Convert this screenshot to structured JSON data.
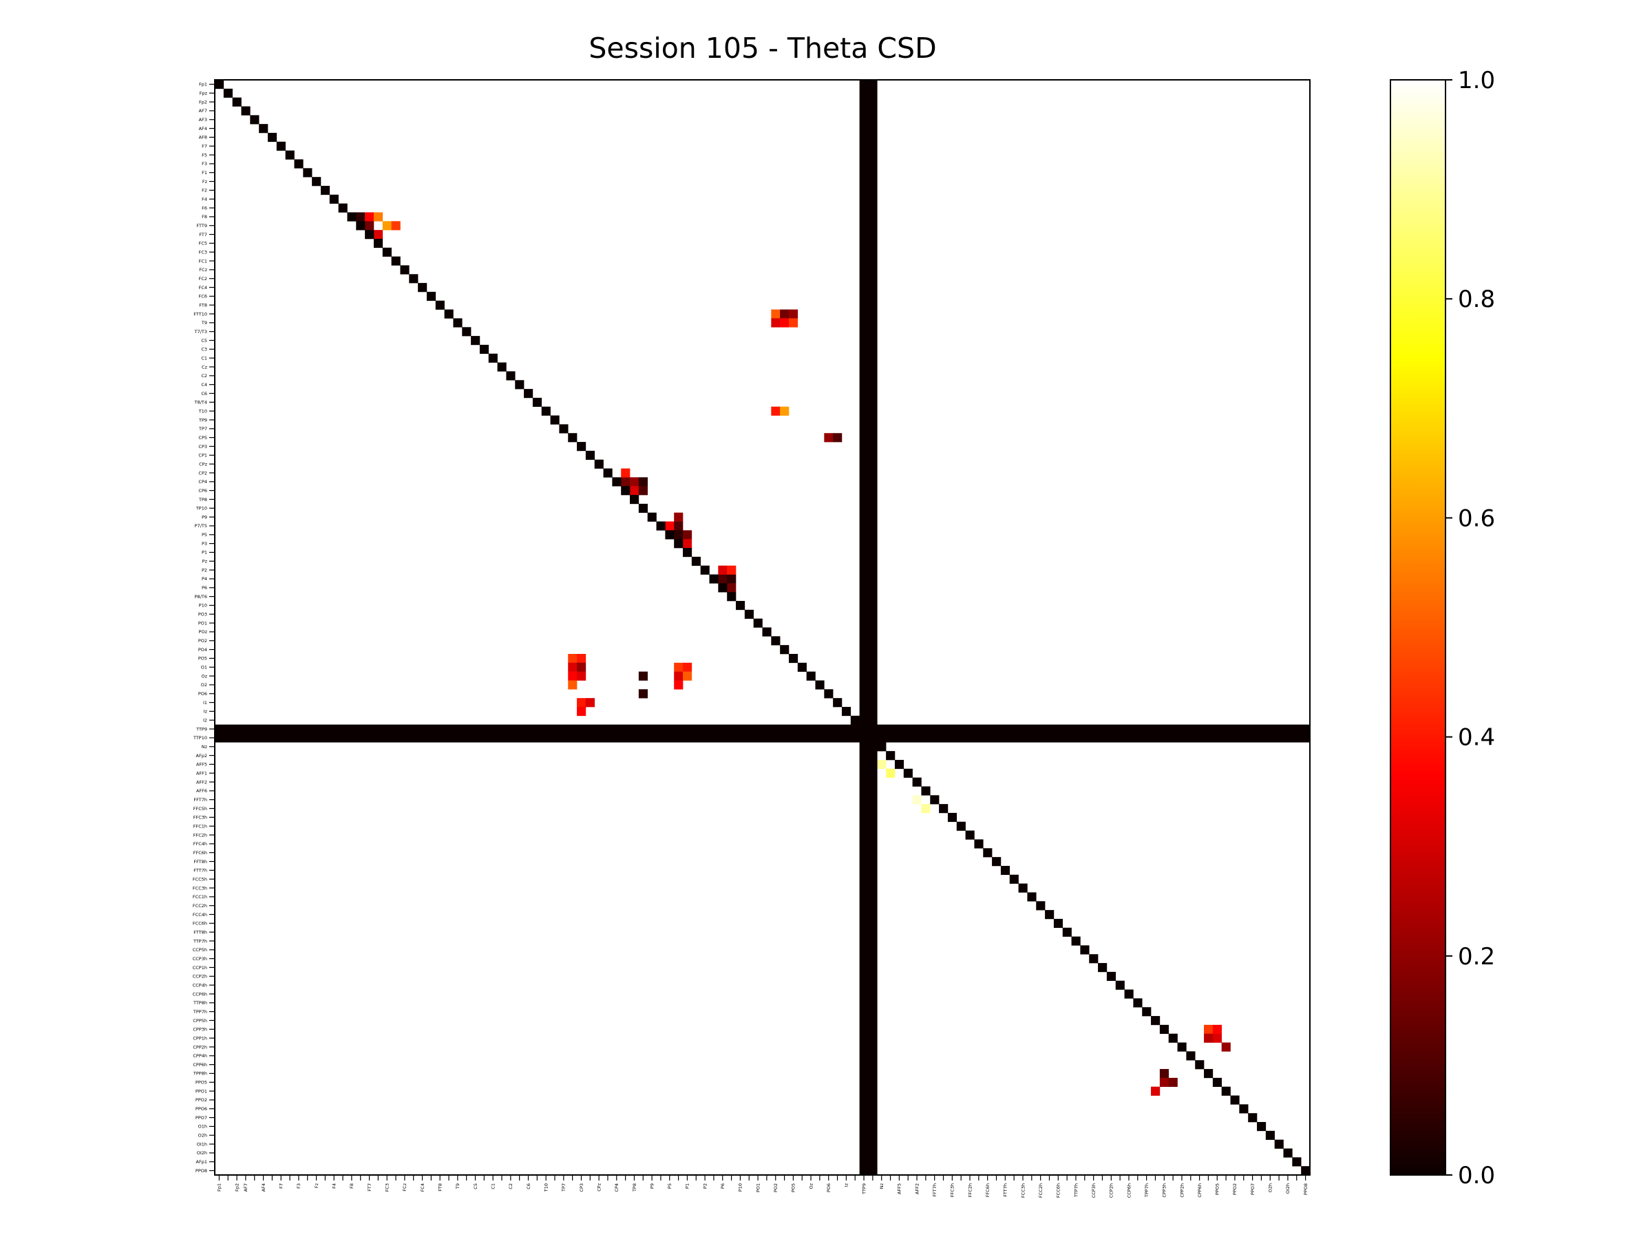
{
  "chart_data": {
    "type": "heatmap",
    "title": "Session 105 - Theta CSD",
    "xlabel": "",
    "ylabel": "",
    "colormap": "hot",
    "vmin": 0.0,
    "vmax": 1.0,
    "colorbar_ticks": [
      "0.0",
      "0.2",
      "0.4",
      "0.6",
      "0.8",
      "1.0"
    ],
    "colorbar_tick_values": [
      0.0,
      0.2,
      0.4,
      0.6,
      0.8,
      1.0
    ],
    "channels": [
      "Fp1",
      "Fpz",
      "Fp2",
      "AF7",
      "AF3",
      "AF4",
      "AF8",
      "F7",
      "F5",
      "F3",
      "F1",
      "Fz",
      "F2",
      "F4",
      "F6",
      "F8",
      "FTT9",
      "FT7",
      "FC5",
      "FC3",
      "FC1",
      "FCz",
      "FC2",
      "FC4",
      "FC6",
      "FT8",
      "FTT10",
      "T9",
      "T7/T3",
      "C5",
      "C3",
      "C1",
      "Cz",
      "C2",
      "C4",
      "C6",
      "T8/T4",
      "T10",
      "TP9",
      "TP7",
      "CP5",
      "CP3",
      "CP1",
      "CPz",
      "CP2",
      "CP4",
      "CP6",
      "TP8",
      "TP10",
      "P9",
      "P7/T5",
      "P5",
      "P3",
      "P1",
      "Pz",
      "P2",
      "P4",
      "P6",
      "P8/T6",
      "P10",
      "PO3",
      "PO1",
      "POz",
      "PO2",
      "PO4",
      "PO5",
      "O1",
      "Oz",
      "O2",
      "PO6",
      "I1",
      "Iz",
      "I2",
      "TTP9",
      "TTP10",
      "Nz",
      "AFp2",
      "AFF5",
      "AFF1",
      "AFF2",
      "AFF6",
      "FFT7h",
      "FFC5h",
      "FFC3h",
      "FFC1h",
      "FFC2h",
      "FFC4h",
      "FFC6h",
      "FFT8h",
      "FTT7h",
      "FCC5h",
      "FCC3h",
      "FCC1h",
      "FCC2h",
      "FCC4h",
      "FCC6h",
      "FTT8h",
      "TTP7h",
      "CCP5h",
      "CCP3h",
      "CCP1h",
      "CCP2h",
      "CCP4h",
      "CCP6h",
      "TTP8h",
      "TPP7h",
      "CPP5h",
      "CPP3h",
      "CPP1h",
      "CPP2h",
      "CPP4h",
      "CPP6h",
      "TPP8h",
      "PPO5",
      "PPO1",
      "PPO2",
      "PPO6",
      "PPO7",
      "O1h",
      "O2h",
      "OI1h",
      "OI2h",
      "AFp1",
      "PPO8"
    ],
    "x_tick_labels": [
      "Fp1",
      "Fp2",
      "AF7",
      "AF4",
      "F7",
      "F3",
      "Fz",
      "F4",
      "F8",
      "FT7",
      "FC3",
      "FCz",
      "FC4",
      "FT8",
      "T9",
      "C5",
      "C1",
      "C2",
      "C6",
      "T10",
      "TP7",
      "CP3",
      "CPz",
      "CP4",
      "TP8",
      "P9",
      "P5",
      "P1",
      "P2",
      "P6",
      "P10",
      "PO1",
      "PO2",
      "PO5",
      "Oz",
      "PO6",
      "Iz",
      "TTP9",
      "Nz",
      "AFF5",
      "AFF2",
      "FFT7h",
      "FFC3h",
      "FFC2h",
      "FFC6h",
      "FTT7h",
      "FCC3h",
      "FCC2h",
      "FCC6h",
      "TTP7h",
      "CCP3h",
      "CCP2h",
      "CCP6h",
      "TPP7h",
      "CPP3h",
      "CPP2h",
      "CPP6h",
      "PPO5",
      "PPO2",
      "PPO7",
      "O2h",
      "OI2h",
      "PPO8"
    ],
    "y_tick_labels": [
      "Fp1",
      "Fpz",
      "Fp2",
      "AF7",
      "AF3",
      "AF4",
      "AF8",
      "F7",
      "F5",
      "F3",
      "F1",
      "Fz",
      "F2",
      "F4",
      "F6",
      "F8",
      "FTT9",
      "FT7",
      "FC5",
      "FC3",
      "FC1",
      "FCz",
      "FC2",
      "FC4",
      "FC6",
      "FT8",
      "FTT10",
      "T9",
      "T7/T3",
      "C5",
      "C3",
      "C1",
      "Cz",
      "C2",
      "C4",
      "C6",
      "T8/T4",
      "T10",
      "TP9",
      "TP7",
      "CP5",
      "CP3",
      "CP1",
      "CPz",
      "CP2",
      "CP4",
      "CP6",
      "TP8",
      "TP10",
      "P9",
      "P7/T5",
      "P5",
      "P3",
      "P1",
      "Pz",
      "P2",
      "P4",
      "P6",
      "P8/T6",
      "P10",
      "PO3",
      "PO1",
      "POz",
      "PO2",
      "PO4",
      "PO5",
      "O1",
      "Oz",
      "O2",
      "PO6",
      "I1",
      "Iz",
      "I2",
      "TTP9",
      "TTP10",
      "Nz",
      "AFp2",
      "AFF5",
      "AFF1",
      "AFF2",
      "AFF6",
      "FFT7h",
      "FFC5h",
      "FFC3h",
      "FFC1h",
      "FFC2h",
      "FFC4h",
      "FFC6h",
      "FFT8h",
      "FTT7h",
      "FCC5h",
      "FCC3h",
      "FCC1h",
      "FCC2h",
      "FCC4h",
      "FCC6h",
      "FTT8h",
      "TTP7h",
      "CCP5h",
      "CCP3h",
      "CCP1h",
      "CCP2h",
      "CCP4h",
      "CCP6h",
      "TTP8h",
      "TPP7h",
      "CPP5h",
      "CPP3h",
      "CPP1h",
      "CPP2h",
      "CPP4h",
      "CPP6h",
      "TPP8h",
      "PPO5",
      "PPO1",
      "PPO2",
      "PPO6",
      "PPO7",
      "O1h",
      "O2h",
      "OI1h",
      "OI2h",
      "AFp1",
      "PPO8"
    ],
    "zero_channels": [
      "TTP9",
      "TTP10"
    ],
    "diagonal_value": 0.0,
    "grid": false,
    "colorbar_position": "right",
    "cells": [
      [
        15,
        16,
        0.05
      ],
      [
        15,
        17,
        0.35
      ],
      [
        16,
        17,
        0.15
      ],
      [
        15,
        18,
        0.55
      ],
      [
        17,
        18,
        0.3
      ],
      [
        16,
        19,
        0.6
      ],
      [
        16,
        20,
        0.45
      ],
      [
        45,
        46,
        0.15
      ],
      [
        45,
        47,
        0.2
      ],
      [
        46,
        47,
        0.3
      ],
      [
        44,
        46,
        0.4
      ],
      [
        45,
        48,
        0.05
      ],
      [
        46,
        48,
        0.1
      ],
      [
        50,
        51,
        0.35
      ],
      [
        50,
        52,
        0.1
      ],
      [
        51,
        52,
        0.05
      ],
      [
        49,
        52,
        0.2
      ],
      [
        51,
        53,
        0.15
      ],
      [
        52,
        53,
        0.3
      ],
      [
        56,
        57,
        0.1
      ],
      [
        56,
        58,
        0.05
      ],
      [
        57,
        58,
        0.15
      ],
      [
        55,
        57,
        0.3
      ],
      [
        55,
        58,
        0.4
      ],
      [
        26,
        63,
        0.5
      ],
      [
        26,
        64,
        0.15
      ],
      [
        26,
        65,
        0.2
      ],
      [
        27,
        63,
        0.3
      ],
      [
        27,
        64,
        0.35
      ],
      [
        27,
        65,
        0.45
      ],
      [
        37,
        63,
        0.4
      ],
      [
        37,
        64,
        0.6
      ],
      [
        40,
        69,
        0.2
      ],
      [
        40,
        70,
        0.1
      ],
      [
        65,
        40,
        0.45
      ],
      [
        66,
        40,
        0.3
      ],
      [
        67,
        40,
        0.35
      ],
      [
        68,
        40,
        0.5
      ],
      [
        65,
        41,
        0.4
      ],
      [
        66,
        41,
        0.2
      ],
      [
        67,
        41,
        0.3
      ],
      [
        66,
        52,
        0.45
      ],
      [
        67,
        52,
        0.3
      ],
      [
        68,
        52,
        0.35
      ],
      [
        66,
        53,
        0.4
      ],
      [
        67,
        53,
        0.5
      ],
      [
        67,
        48,
        0.05
      ],
      [
        69,
        48,
        0.05
      ],
      [
        70,
        41,
        0.4
      ],
      [
        71,
        41,
        0.35
      ],
      [
        70,
        42,
        0.3
      ],
      [
        77,
        75,
        0.9
      ],
      [
        78,
        76,
        0.85
      ],
      [
        81,
        79,
        0.95
      ],
      [
        82,
        80,
        0.9
      ],
      [
        107,
        112,
        0.45
      ],
      [
        108,
        113,
        0.3
      ],
      [
        109,
        114,
        0.2
      ],
      [
        107,
        113,
        0.35
      ],
      [
        108,
        112,
        0.25
      ],
      [
        113,
        108,
        0.15
      ],
      [
        112,
        107,
        0.1
      ],
      [
        113,
        107,
        0.2
      ],
      [
        114,
        106,
        0.3
      ]
    ]
  }
}
